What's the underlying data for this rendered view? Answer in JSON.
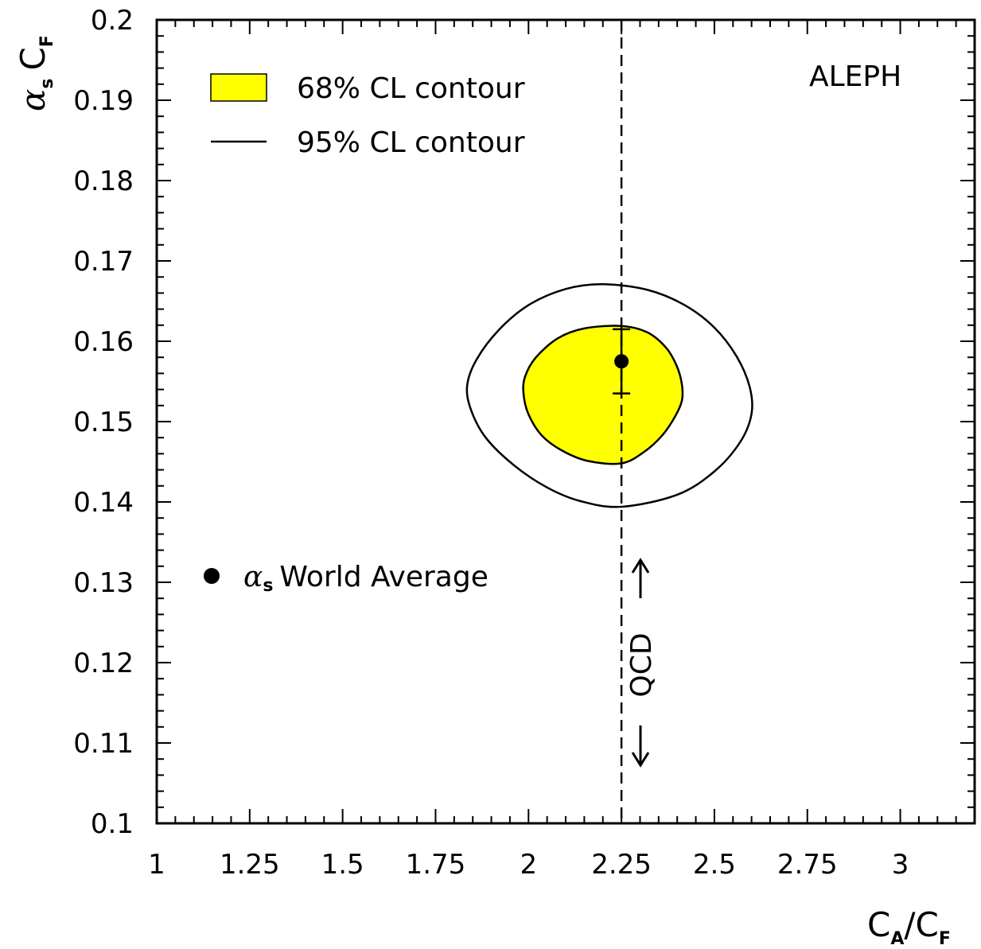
{
  "chart_data": {
    "type": "contour",
    "x_range": [
      1,
      3.2
    ],
    "y_range": [
      0.1,
      0.2
    ],
    "x_ticks": [
      "1",
      "1.25",
      "1.5",
      "1.75",
      "2",
      "2.25",
      "2.5",
      "2.75",
      "3"
    ],
    "y_ticks": [
      "0.1",
      "0.11",
      "0.12",
      "0.13",
      "0.14",
      "0.15",
      "0.16",
      "0.17",
      "0.18",
      "0.19",
      "0.2"
    ],
    "xlabel": {
      "main_1": "C",
      "sub_1": "A",
      "sep": "/",
      "main_2": "C",
      "sub_2": "F"
    },
    "ylabel": {
      "greek": "α",
      "sub_1": "s",
      "main": "C",
      "sub_2": "F"
    },
    "experiment_label": "ALEPH",
    "legend": {
      "cl68": "68% CL contour",
      "cl95": "95% CL contour",
      "world_avg_greek": "α",
      "world_avg_sub": "s",
      "world_avg_text": "World Average"
    },
    "contour_68": [
      [
        2.25,
        0.1448
      ],
      [
        2.31,
        0.1462
      ],
      [
        2.36,
        0.1483
      ],
      [
        2.395,
        0.1507
      ],
      [
        2.413,
        0.1527
      ],
      [
        2.412,
        0.1548
      ],
      [
        2.398,
        0.157
      ],
      [
        2.37,
        0.1592
      ],
      [
        2.32,
        0.1611
      ],
      [
        2.25,
        0.1619
      ],
      [
        2.15,
        0.1616
      ],
      [
        2.08,
        0.1604
      ],
      [
        2.02,
        0.158
      ],
      [
        1.99,
        0.1555
      ],
      [
        1.987,
        0.1533
      ],
      [
        2.0,
        0.1509
      ],
      [
        2.035,
        0.1483
      ],
      [
        2.09,
        0.1464
      ],
      [
        2.16,
        0.1451
      ]
    ],
    "contour_95": [
      [
        2.25,
        0.1394
      ],
      [
        2.4,
        0.1409
      ],
      [
        2.5,
        0.1438
      ],
      [
        2.57,
        0.1475
      ],
      [
        2.6,
        0.151
      ],
      [
        2.595,
        0.1543
      ],
      [
        2.56,
        0.1581
      ],
      [
        2.5,
        0.1617
      ],
      [
        2.42,
        0.1645
      ],
      [
        2.32,
        0.1664
      ],
      [
        2.2,
        0.1671
      ],
      [
        2.1,
        0.1665
      ],
      [
        2.0,
        0.1645
      ],
      [
        1.92,
        0.1614
      ],
      [
        1.86,
        0.1577
      ],
      [
        1.835,
        0.1545
      ],
      [
        1.845,
        0.1515
      ],
      [
        1.885,
        0.148
      ],
      [
        1.96,
        0.1446
      ],
      [
        2.05,
        0.1418
      ],
      [
        2.14,
        0.1401
      ]
    ],
    "qcd_value": 2.25,
    "qcd_label": "QCD",
    "world_average": {
      "x": 2.25,
      "y": 0.1575,
      "y_low": 0.1535,
      "y_high": 0.1615
    },
    "colors": {
      "cl68_fill": "#ffff00",
      "line": "#000000"
    }
  }
}
